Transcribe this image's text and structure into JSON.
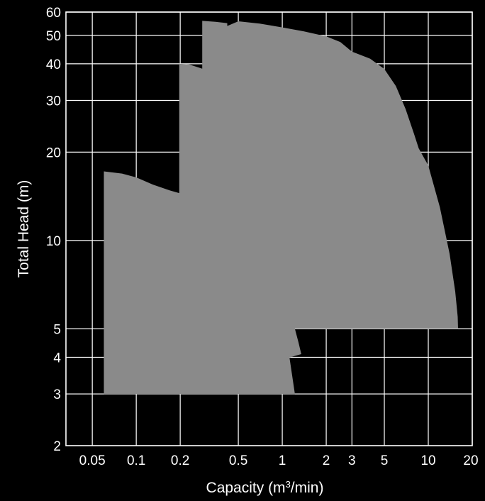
{
  "chart_data": {
    "type": "area",
    "xlabel": {
      "prefix": "Capacity (m",
      "sup": "3",
      "suffix": "/min)"
    },
    "ylabel": "Total Head (m)",
    "xscale": "log",
    "yscale": "log",
    "xlim": [
      0.033,
      20
    ],
    "ylim": [
      2,
      60
    ],
    "grid": true,
    "x_ticks": [
      {
        "value": 0.05,
        "label": "0.05"
      },
      {
        "value": 0.1,
        "label": "0.1"
      },
      {
        "value": 0.2,
        "label": "0.2"
      },
      {
        "value": 0.5,
        "label": "0.5"
      },
      {
        "value": 1,
        "label": "1"
      },
      {
        "value": 2,
        "label": "2"
      },
      {
        "value": 3,
        "label": "3"
      },
      {
        "value": 5,
        "label": "5"
      },
      {
        "value": 10,
        "label": "10"
      },
      {
        "value": 20,
        "label": "20"
      }
    ],
    "y_ticks": [
      {
        "value": 2,
        "label": "2"
      },
      {
        "value": 3,
        "label": "3"
      },
      {
        "value": 4,
        "label": "4"
      },
      {
        "value": 5,
        "label": "5"
      },
      {
        "value": 10,
        "label": "10"
      },
      {
        "value": 20,
        "label": "20"
      },
      {
        "value": 30,
        "label": "30"
      },
      {
        "value": 40,
        "label": "40"
      },
      {
        "value": 50,
        "label": "50"
      },
      {
        "value": 60,
        "label": "60"
      }
    ],
    "x_grid": [
      0.05,
      0.1,
      0.2,
      0.5,
      1,
      2,
      3,
      5,
      10,
      20
    ],
    "y_grid": [
      3,
      4,
      5,
      10,
      20,
      30,
      40,
      50,
      60
    ],
    "regions": [
      {
        "color": "#8a8a8a",
        "points": [
          [
            0.06,
            3
          ],
          [
            0.06,
            17.2
          ],
          [
            0.08,
            16.9
          ],
          [
            0.1,
            16.4
          ],
          [
            0.13,
            15.5
          ],
          [
            0.17,
            14.8
          ],
          [
            0.197,
            14.5
          ],
          [
            0.197,
            40
          ],
          [
            0.23,
            39.8
          ],
          [
            0.283,
            38.5
          ],
          [
            0.283,
            56.0
          ],
          [
            0.35,
            55.6
          ],
          [
            0.42,
            55.0
          ],
          [
            0.42,
            53.8
          ],
          [
            0.5,
            55.8
          ],
          [
            0.7,
            54.8
          ],
          [
            1.0,
            53.2
          ],
          [
            1.4,
            51.6
          ],
          [
            2.0,
            49.6
          ],
          [
            2.5,
            47.4
          ],
          [
            3.0,
            44.0
          ],
          [
            4.0,
            41.6
          ],
          [
            5.0,
            38.4
          ],
          [
            6.0,
            33.6
          ],
          [
            7.0,
            28.0
          ],
          [
            8.0,
            23.0
          ],
          [
            8.6,
            20.6
          ],
          [
            10.0,
            18.0
          ],
          [
            12.0,
            13.0
          ],
          [
            14.0,
            9.0
          ],
          [
            15.3,
            6.7
          ],
          [
            15.9,
            5.5
          ],
          [
            16.0,
            5.0
          ],
          [
            1.22,
            5.0
          ],
          [
            1.29,
            4.5
          ],
          [
            1.35,
            4.1
          ],
          [
            1.13,
            4.0
          ],
          [
            1.12,
            4.0
          ],
          [
            1.22,
            3.0
          ]
        ]
      }
    ]
  }
}
